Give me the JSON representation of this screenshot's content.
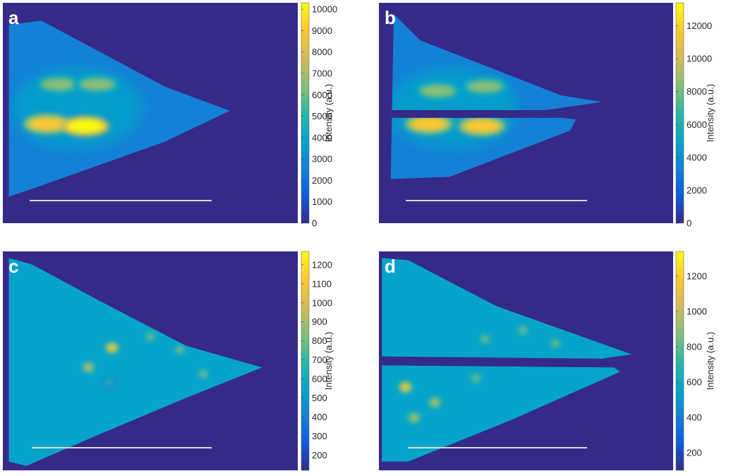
{
  "figure": {
    "background": "#ffffff",
    "plot_background": "#352a87",
    "colormap": [
      "#352a87",
      "#0f5cdd",
      "#1481d6",
      "#06a4ca",
      "#2eb7a4",
      "#87bf77",
      "#d1bb59",
      "#fec832",
      "#f9fb0e"
    ],
    "scalebar_color": "#dcdcdc",
    "letter_color": "#ffffff"
  },
  "chart_data": [
    {
      "type": "heatmap",
      "panel_label": "a",
      "shape": "triangle",
      "colorbar": {
        "label": "Intensity (a.u.)",
        "range": [
          0,
          10300
        ],
        "ticks": [
          0,
          1000,
          2000,
          3000,
          4000,
          5000,
          6000,
          7000,
          8000,
          9000,
          10000
        ]
      },
      "hotspots": [
        {
          "x": 0.15,
          "y": 0.55,
          "value": 9500
        },
        {
          "x": 0.28,
          "y": 0.56,
          "value": 9800
        },
        {
          "x": 0.19,
          "y": 0.37,
          "value": 7000
        },
        {
          "x": 0.32,
          "y": 0.37,
          "value": 6500
        }
      ]
    },
    {
      "type": "heatmap",
      "panel_label": "b",
      "shape": "split-triangle",
      "colorbar": {
        "label": "Intensity (a.u.)",
        "range": [
          0,
          13400
        ],
        "ticks": [
          0,
          2000,
          4000,
          6000,
          8000,
          10000,
          12000
        ]
      },
      "hotspots": [
        {
          "x": 0.17,
          "y": 0.55,
          "value": 11500
        },
        {
          "x": 0.35,
          "y": 0.56,
          "value": 11800
        },
        {
          "x": 0.2,
          "y": 0.4,
          "value": 8500
        },
        {
          "x": 0.36,
          "y": 0.38,
          "value": 8000
        }
      ]
    },
    {
      "type": "heatmap",
      "panel_label": "c",
      "shape": "triangle",
      "colorbar": {
        "label": "Intensity (a.u.)",
        "range": [
          120,
          1270
        ],
        "ticks": [
          200,
          300,
          400,
          500,
          600,
          700,
          800,
          900,
          1000,
          1100,
          1200
        ]
      },
      "hotspots": [
        {
          "x": 0.37,
          "y": 0.44,
          "value": 1150
        },
        {
          "x": 0.29,
          "y": 0.53,
          "value": 1000
        },
        {
          "x": 0.6,
          "y": 0.45,
          "value": 900
        },
        {
          "x": 0.68,
          "y": 0.56,
          "value": 850
        },
        {
          "x": 0.5,
          "y": 0.39,
          "value": 800
        },
        {
          "x": 0.36,
          "y": 0.6,
          "value": 750
        }
      ]
    },
    {
      "type": "heatmap",
      "panel_label": "d",
      "shape": "split-triangle",
      "colorbar": {
        "label": "Intensity (a.u.)",
        "range": [
          100,
          1340
        ],
        "ticks": [
          200,
          400,
          600,
          800,
          1000,
          1200
        ]
      },
      "hotspots": [
        {
          "x": 0.09,
          "y": 0.62,
          "value": 1200
        },
        {
          "x": 0.19,
          "y": 0.69,
          "value": 1000
        },
        {
          "x": 0.12,
          "y": 0.76,
          "value": 1000
        },
        {
          "x": 0.36,
          "y": 0.4,
          "value": 950
        },
        {
          "x": 0.49,
          "y": 0.36,
          "value": 850
        },
        {
          "x": 0.6,
          "y": 0.42,
          "value": 850
        },
        {
          "x": 0.33,
          "y": 0.58,
          "value": 800
        }
      ]
    }
  ]
}
